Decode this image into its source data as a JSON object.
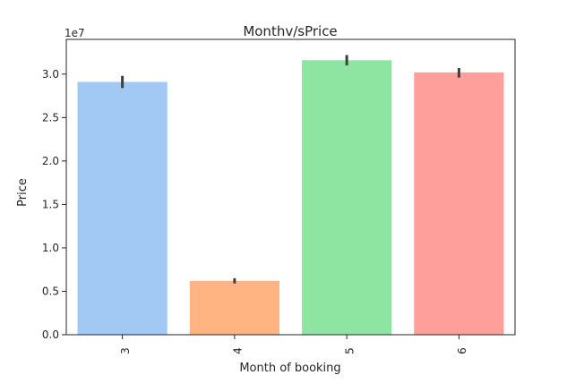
{
  "chart_data": {
    "type": "bar",
    "title": "Monthv/sPrice",
    "xlabel": "Month of booking",
    "ylabel": "Price",
    "offset_label": "1e7",
    "categories": [
      "3",
      "4",
      "5",
      "6"
    ],
    "values": [
      2.91,
      0.62,
      3.16,
      3.02
    ],
    "error_low": [
      2.84,
      0.59,
      3.1,
      2.96
    ],
    "error_high": [
      2.98,
      0.65,
      3.22,
      3.07
    ],
    "colors": [
      "#a1c9f4",
      "#ffb482",
      "#8de5a1",
      "#ff9f9b"
    ],
    "ylim": [
      0,
      3.4
    ],
    "yticks": [
      0.0,
      0.5,
      1.0,
      1.5,
      2.0,
      2.5,
      3.0
    ],
    "ytick_labels": [
      "0.0",
      "0.5",
      "1.0",
      "1.5",
      "2.0",
      "2.5",
      "3.0"
    ],
    "grid": false,
    "legend": "none"
  }
}
